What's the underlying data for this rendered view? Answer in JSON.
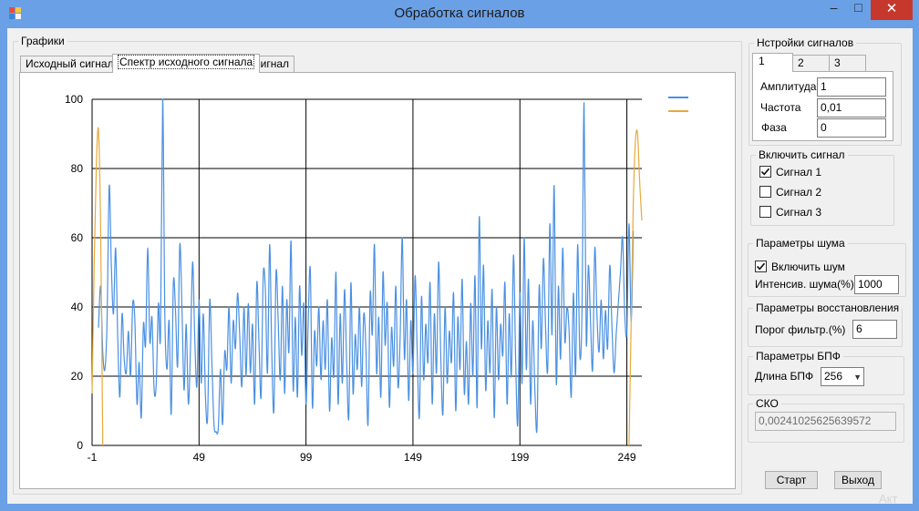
{
  "window": {
    "title": "Обработка сигналов",
    "minimize_glyph": "–",
    "maximize_glyph": "□",
    "close_glyph": "✕"
  },
  "graphs": {
    "group_label": "Графики",
    "tabs": [
      {
        "label": "Исходный сигнал",
        "active": false
      },
      {
        "label": "Спектр исходного сигнала",
        "active": true
      },
      {
        "label": "Сигнал",
        "active": false
      }
    ]
  },
  "signal_settings": {
    "group_label": "Нстройки сигналов",
    "tabs": [
      "1",
      "2",
      "3"
    ],
    "fields": [
      {
        "label": "Амплитуда",
        "value": "1"
      },
      {
        "label": "Частота",
        "value": "0,01"
      },
      {
        "label": "Фаза",
        "value": "0"
      }
    ]
  },
  "enable_signal": {
    "group_label": "Включить сигнал",
    "items": [
      {
        "label": "Сигнал 1",
        "checked": true
      },
      {
        "label": "Сигнал 2",
        "checked": false
      },
      {
        "label": "Сигнал 3",
        "checked": false
      }
    ]
  },
  "noise": {
    "group_label": "Параметры шума",
    "enable_label": "Включить шум",
    "enable_checked": true,
    "intensity_label": "Интенсив. шума(%)",
    "intensity_value": "1000"
  },
  "restore": {
    "group_label": "Параметры восстановления",
    "threshold_label": "Порог фильтр.(%)",
    "threshold_value": "6"
  },
  "fft": {
    "group_label": "Параметры БПФ",
    "length_label": "Длина БПФ",
    "length_value": "256"
  },
  "sko": {
    "group_label": "СКО",
    "value": "0,00241025625639572"
  },
  "buttons": {
    "start": "Старт",
    "exit": "Выход"
  },
  "watermark": "Акт",
  "colors": {
    "series_1": "#4a90e2",
    "series_2": "#e8a93a",
    "title_bar": "#6aa0e6",
    "close_button": "#c7382c"
  },
  "chart_data": {
    "type": "line",
    "title": "",
    "xlabel": "",
    "ylabel": "",
    "xlim": [
      -1,
      256
    ],
    "ylim": [
      0,
      100
    ],
    "x_ticks": [
      -1,
      49,
      99,
      149,
      199,
      249
    ],
    "y_ticks": [
      0,
      20,
      40,
      60,
      80,
      100
    ],
    "grid": true,
    "legend": "top-right, two unlabeled color swatches",
    "series": [
      {
        "color": "#4a90e2",
        "x_start": 2,
        "x_step": 1,
        "values": [
          34,
          46,
          27,
          22,
          36,
          75,
          52,
          38,
          57,
          31,
          14,
          38,
          25,
          21,
          33,
          20,
          41,
          36,
          12,
          24,
          8,
          35,
          29,
          57,
          30,
          37,
          16,
          18,
          41,
          32,
          100,
          38,
          22,
          36,
          9,
          47,
          39,
          23,
          58,
          40,
          16,
          35,
          12,
          28,
          53,
          31,
          17,
          42,
          18,
          38,
          14,
          8,
          42,
          24,
          6,
          4,
          5,
          22,
          6,
          27,
          22,
          40,
          18,
          36,
          28,
          44,
          32,
          17,
          40,
          20,
          41,
          21,
          35,
          12,
          47,
          30,
          14,
          49,
          45,
          21,
          58,
          27,
          10,
          50,
          36,
          19,
          46,
          15,
          42,
          27,
          59,
          16,
          37,
          14,
          46,
          26,
          41,
          12,
          35,
          51,
          11,
          33,
          23,
          40,
          19,
          36,
          22,
          42,
          10,
          31,
          20,
          50,
          12,
          38,
          18,
          45,
          24,
          8,
          47,
          15,
          32,
          22,
          40,
          17,
          38,
          28,
          6,
          44,
          32,
          58,
          21,
          37,
          14,
          50,
          29,
          41,
          11,
          34,
          23,
          46,
          17,
          31,
          60,
          25,
          42,
          13,
          36,
          21,
          49,
          27,
          8,
          43,
          19,
          35,
          24,
          47,
          12,
          38,
          21,
          53,
          26,
          9,
          40,
          18,
          33,
          24,
          44,
          10,
          37,
          22,
          48,
          15,
          30,
          12,
          41,
          20,
          49,
          11,
          66,
          28,
          52,
          16,
          36,
          21,
          45,
          8,
          40,
          19,
          35,
          26,
          47,
          12,
          38,
          20,
          55,
          25,
          6,
          44,
          18,
          60,
          22,
          48,
          12,
          36,
          16,
          5,
          46,
          28,
          54,
          34,
          22,
          64,
          32,
          75,
          18,
          46,
          25,
          57,
          30,
          40,
          33,
          14,
          44,
          20,
          58,
          26,
          38,
          99,
          30,
          52,
          36,
          22,
          57,
          38,
          27,
          42,
          25,
          39,
          28,
          52,
          35,
          21,
          32,
          41,
          50,
          60,
          38,
          33,
          64,
          36,
          62
        ]
      },
      {
        "color": "#e8a93a",
        "x_start": -1,
        "x_step": 1,
        "values": [
          15,
          53,
          81,
          91,
          62,
          0
        ],
        "tail": {
          "x_start": 250,
          "values": [
            0,
            35,
            70,
            88,
            90,
            76,
            65
          ]
        }
      }
    ]
  }
}
